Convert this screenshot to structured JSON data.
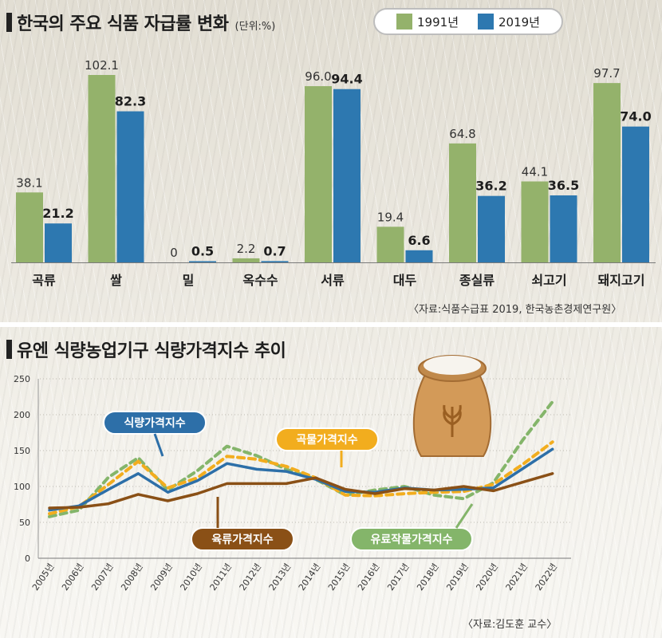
{
  "colors": {
    "series_1991": "#94b26b",
    "series_2019": "#2d78b0",
    "food_index": "#2d6fa8",
    "grain_index": "#f2ad1e",
    "meat_index": "#8a5016",
    "oil_index": "#84b56a"
  },
  "panel1": {
    "title": "한국의 주요 식품 자급률 변화",
    "unit": "(단위:%)",
    "legend": [
      "1991년",
      "2019년"
    ],
    "source": "〈자료:식품수급표 2019, 한국농촌경제연구원〉"
  },
  "panel2": {
    "title": "유엔 식량농업기구 식량가격지수 추이",
    "source": "〈자료:김도훈 교수〉",
    "callouts": {
      "food": "식량가격지수",
      "grain": "곡물가격지수",
      "meat": "육류가격지수",
      "oil": "유료작물가격지수"
    }
  },
  "chart_data": [
    {
      "type": "bar",
      "title": "한국의 주요 식품 자급률 변화",
      "unit": "(단위:%)",
      "categories": [
        "곡류",
        "쌀",
        "밀",
        "옥수수",
        "서류",
        "대두",
        "종실류",
        "쇠고기",
        "돼지고기"
      ],
      "series": [
        {
          "name": "1991년",
          "values": [
            38.1,
            102.1,
            0,
            2.2,
            96.0,
            19.4,
            64.8,
            44.1,
            97.7
          ],
          "labels": [
            "38.1",
            "102.1",
            "0",
            "2.2",
            "96.0",
            "19.4",
            "64.8",
            "44.1",
            "97.7"
          ]
        },
        {
          "name": "2019년",
          "values": [
            21.2,
            82.3,
            0.5,
            0.7,
            94.4,
            6.6,
            36.2,
            36.5,
            74.0
          ],
          "labels": [
            "21.2",
            "82.3",
            "0.5",
            "0.7",
            "94.4",
            "6.6",
            "36.2",
            "36.5",
            "74.0"
          ]
        }
      ],
      "ylim": [
        0,
        102.1
      ],
      "grid": false,
      "legend_position": "top-right"
    },
    {
      "type": "line",
      "title": "유엔 식량농업기구 식량가격지수 추이",
      "x": [
        "2005년",
        "2006년",
        "2007년",
        "2008년",
        "2009년",
        "2010년",
        "2011년",
        "2012년",
        "2013년",
        "2014년",
        "2015년",
        "2016년",
        "2017년",
        "2018년",
        "2019년",
        "2020년",
        "2021년",
        "2022년"
      ],
      "yticks": [
        0,
        50,
        100,
        150,
        200,
        250
      ],
      "ylim": [
        0,
        250
      ],
      "grid": true,
      "series": [
        {
          "name": "식량가격지수",
          "style": "solid",
          "values": [
            67,
            73,
            96,
            118,
            92,
            108,
            132,
            124,
            121,
            110,
            93,
            92,
            98,
            95,
            96,
            98,
            125,
            152
          ]
        },
        {
          "name": "곡물가격지수",
          "style": "dashed",
          "values": [
            62,
            72,
            103,
            135,
            98,
            112,
            142,
            138,
            128,
            112,
            88,
            87,
            90,
            92,
            93,
            103,
            131,
            162
          ]
        },
        {
          "name": "육류가격지수",
          "style": "solid",
          "values": [
            70,
            71,
            76,
            89,
            80,
            90,
            104,
            104,
            104,
            112,
            96,
            90,
            97,
            95,
            100,
            94,
            106,
            118
          ]
        },
        {
          "name": "유료작물가격지수",
          "style": "dashed",
          "values": [
            58,
            67,
            113,
            140,
            95,
            122,
            156,
            143,
            124,
            110,
            88,
            95,
            100,
            88,
            83,
            105,
            165,
            218
          ]
        }
      ]
    }
  ]
}
